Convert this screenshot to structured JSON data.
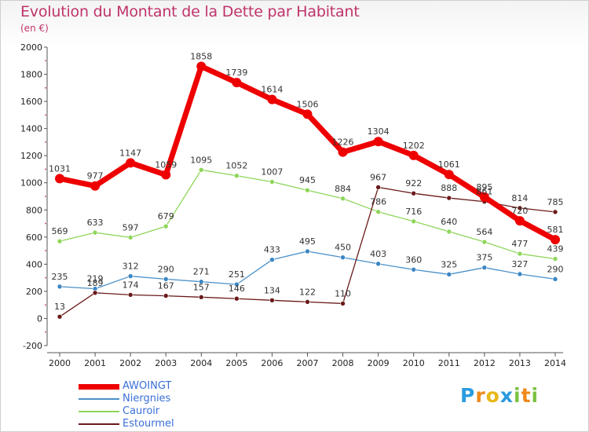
{
  "chart_data": {
    "type": "line",
    "title": "Evolution du Montant de la Dette par Habitant",
    "subtitle": "(en €)",
    "categories": [
      "2000",
      "2001",
      "2002",
      "2003",
      "2004",
      "2005",
      "2006",
      "2007",
      "2008",
      "2009",
      "2010",
      "2011",
      "2012",
      "2013",
      "2014"
    ],
    "ylim": [
      -200,
      2000
    ],
    "yticks": [
      -200,
      0,
      200,
      400,
      600,
      800,
      1000,
      1200,
      1400,
      1600,
      1800,
      2000
    ],
    "grid": false,
    "legend_position": "bottom-left",
    "series": [
      {
        "name": "AWOINGT",
        "color": "#ee0000",
        "values": [
          1031,
          977,
          1147,
          1059,
          1858,
          1739,
          1614,
          1506,
          1226,
          1304,
          1202,
          1061,
          895,
          720,
          581
        ]
      },
      {
        "name": "Niergnies",
        "color": "#4a90c8",
        "values": [
          235,
          219,
          312,
          290,
          271,
          251,
          433,
          495,
          450,
          403,
          360,
          325,
          375,
          327,
          290
        ]
      },
      {
        "name": "Cauroir",
        "color": "#8ed65a",
        "values": [
          569,
          633,
          597,
          679,
          1095,
          1052,
          1007,
          945,
          884,
          786,
          716,
          640,
          564,
          477,
          439
        ]
      },
      {
        "name": "Estourmel",
        "color": "#6b1a1a",
        "values": [
          13,
          189,
          174,
          167,
          157,
          146,
          134,
          122,
          110,
          967,
          922,
          888,
          861,
          814,
          785
        ]
      }
    ]
  },
  "logo_text": "Proxiti"
}
